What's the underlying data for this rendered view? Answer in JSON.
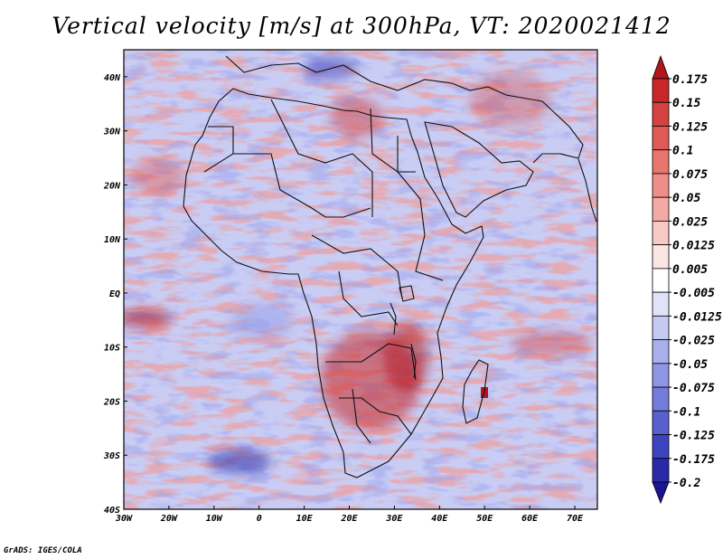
{
  "title": "Vertical velocity [m/s] at 300hPa, VT: 2020021412",
  "footer": "GrADS: IGES/COLA",
  "map": {
    "lon_range": [
      -30,
      75
    ],
    "lat_range": [
      -40,
      45
    ],
    "x_ticks": [
      {
        "value": -30,
        "label": "30W"
      },
      {
        "value": -20,
        "label": "20W"
      },
      {
        "value": -10,
        "label": "10W"
      },
      {
        "value": 0,
        "label": "0"
      },
      {
        "value": 10,
        "label": "10E"
      },
      {
        "value": 20,
        "label": "20E"
      },
      {
        "value": 30,
        "label": "30E"
      },
      {
        "value": 40,
        "label": "40E"
      },
      {
        "value": 50,
        "label": "50E"
      },
      {
        "value": 60,
        "label": "60E"
      },
      {
        "value": 70,
        "label": "70E"
      }
    ],
    "y_ticks": [
      {
        "value": 40,
        "label": "40N"
      },
      {
        "value": 30,
        "label": "30N"
      },
      {
        "value": 20,
        "label": "20N"
      },
      {
        "value": 10,
        "label": "10N"
      },
      {
        "value": 0,
        "label": "EQ"
      },
      {
        "value": -10,
        "label": "10S"
      },
      {
        "value": -20,
        "label": "20S"
      },
      {
        "value": -30,
        "label": "30S"
      },
      {
        "value": -40,
        "label": "40S"
      }
    ],
    "base_color": "#c9cdf4"
  },
  "colorbar": {
    "labels": [
      "0.175",
      "0.15",
      "0.125",
      "0.1",
      "0.075",
      "0.05",
      "0.025",
      "0.0125",
      "0.005",
      "-0.005",
      "-0.0125",
      "-0.025",
      "-0.05",
      "-0.075",
      "-0.1",
      "-0.125",
      "-0.175",
      "-0.2"
    ],
    "colors": [
      "#b0161a",
      "#c8282a",
      "#d4433f",
      "#e05b55",
      "#e8756e",
      "#ee8e88",
      "#f3aaa4",
      "#f8c9c5",
      "#fce6e4",
      "#ffffff",
      "#e0e3f7",
      "#c6caf2",
      "#aab0eb",
      "#8f96e4",
      "#737bdb",
      "#5860cf",
      "#3e43c0",
      "#2a2aa8",
      "#1c1492"
    ]
  }
}
